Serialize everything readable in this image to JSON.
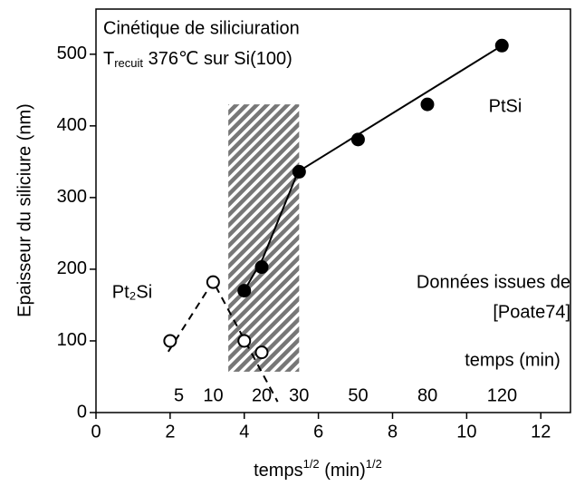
{
  "chart_data": {
    "type": "scatter",
    "title": "Cinétique de siliciuration",
    "subtitle_parts": [
      "T",
      "recuit",
      " 376℃ sur Si(100)"
    ],
    "x_label_parts": [
      "temps",
      "1/2",
      " (min)",
      "1/2"
    ],
    "y_label": "Epaisseur du siliciure (nm)",
    "xlim": [
      0,
      12.8
    ],
    "ylim": [
      0,
      563
    ],
    "xticks": [
      0,
      2,
      4,
      6,
      8,
      10,
      12
    ],
    "yticks": [
      0,
      100,
      200,
      300,
      400,
      500
    ],
    "top_axis": {
      "label": "temps (min)",
      "ticks": [
        5,
        10,
        20,
        30,
        50,
        80,
        120
      ]
    },
    "series": [
      {
        "name": "PtSi",
        "marker": "filled",
        "color": "#000",
        "x": [
          4,
          4.47,
          5.48,
          7.07,
          8.94,
          10.95
        ],
        "values": [
          170,
          203,
          336,
          381,
          430,
          512
        ]
      },
      {
        "name": "Pt₂Si",
        "marker": "open",
        "color": "#000",
        "x": [
          2,
          3.16,
          4,
          4.47
        ],
        "values": [
          100,
          182,
          100,
          84
        ]
      }
    ],
    "fit_lines": [
      {
        "style": "solid",
        "x": [
          4,
          4.5,
          5.45,
          10.95
        ],
        "values": [
          170,
          215,
          336,
          512
        ]
      },
      {
        "style": "dashed",
        "x": [
          1.95,
          3.16,
          4.9
        ],
        "values": [
          85,
          183,
          15
        ]
      }
    ],
    "region": {
      "x": [
        3.57,
        5.48
      ],
      "values": [
        57,
        430
      ]
    },
    "annotations": [
      "Données issues de",
      "[Poate74]"
    ]
  }
}
